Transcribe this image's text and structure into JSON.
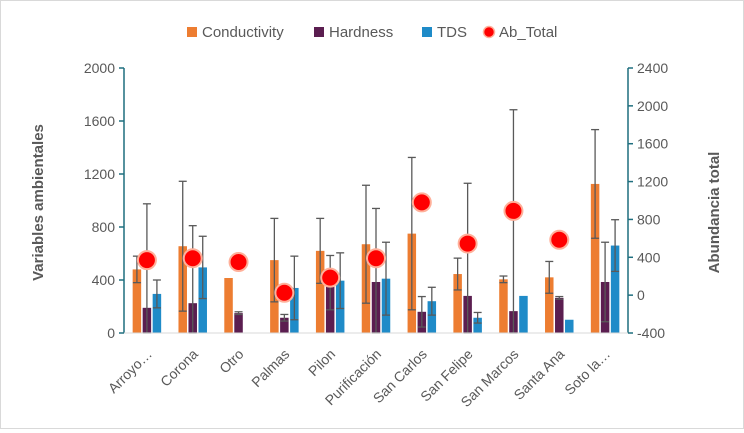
{
  "chart_data": {
    "type": "bar",
    "legend_position": "top",
    "categories": [
      "Arroyo…",
      "Corona",
      "Otro",
      "Palmas",
      "Pilon",
      "Purificación",
      "San Carlos",
      "San Felipe",
      "San Marcos",
      "Santa Ana",
      "Soto la…"
    ],
    "series": [
      {
        "name": "Conductivity",
        "type": "bar",
        "axis": "left",
        "color": "#ED7D31",
        "values": [
          480,
          655,
          415,
          550,
          620,
          670,
          750,
          445,
          405,
          420,
          1125
        ],
        "error": [
          100,
          490,
          0,
          315,
          245,
          445,
          575,
          120,
          25,
          120,
          410
        ]
      },
      {
        "name": "Hardness",
        "type": "bar",
        "axis": "left",
        "color": "#5B1E50",
        "values": [
          190,
          225,
          150,
          115,
          380,
          385,
          160,
          280,
          165,
          265,
          385
        ],
        "error": [
          785,
          585,
          10,
          25,
          205,
          555,
          115,
          850,
          1520,
          10,
          300
        ]
      },
      {
        "name": "TDS",
        "type": "bar",
        "axis": "left",
        "color": "#1F8BC8",
        "values": [
          295,
          495,
          0,
          340,
          395,
          410,
          240,
          115,
          280,
          100,
          660
        ],
        "error": [
          105,
          235,
          0,
          240,
          210,
          275,
          105,
          40,
          0,
          0,
          195
        ]
      },
      {
        "name": "Ab_Total",
        "type": "scatter",
        "axis": "right",
        "color": "#FF0000",
        "values": [
          370,
          390,
          350,
          25,
          185,
          390,
          980,
          545,
          890,
          585,
          null
        ],
        "error": [
          0,
          0,
          0,
          0,
          0,
          0,
          0,
          0,
          0,
          0,
          0
        ]
      }
    ],
    "ylabel": "Variables ambientales",
    "y2label": "Abundancia total",
    "ylim": [
      0,
      2000
    ],
    "y_ticks": [
      "0",
      "400",
      "800",
      "1200",
      "1600",
      "2000"
    ],
    "y2lim": [
      -400,
      2400
    ],
    "y2_ticks": [
      "-400",
      "0",
      "400",
      "800",
      "1200",
      "1600",
      "2000",
      "2400"
    ],
    "grid": false
  }
}
